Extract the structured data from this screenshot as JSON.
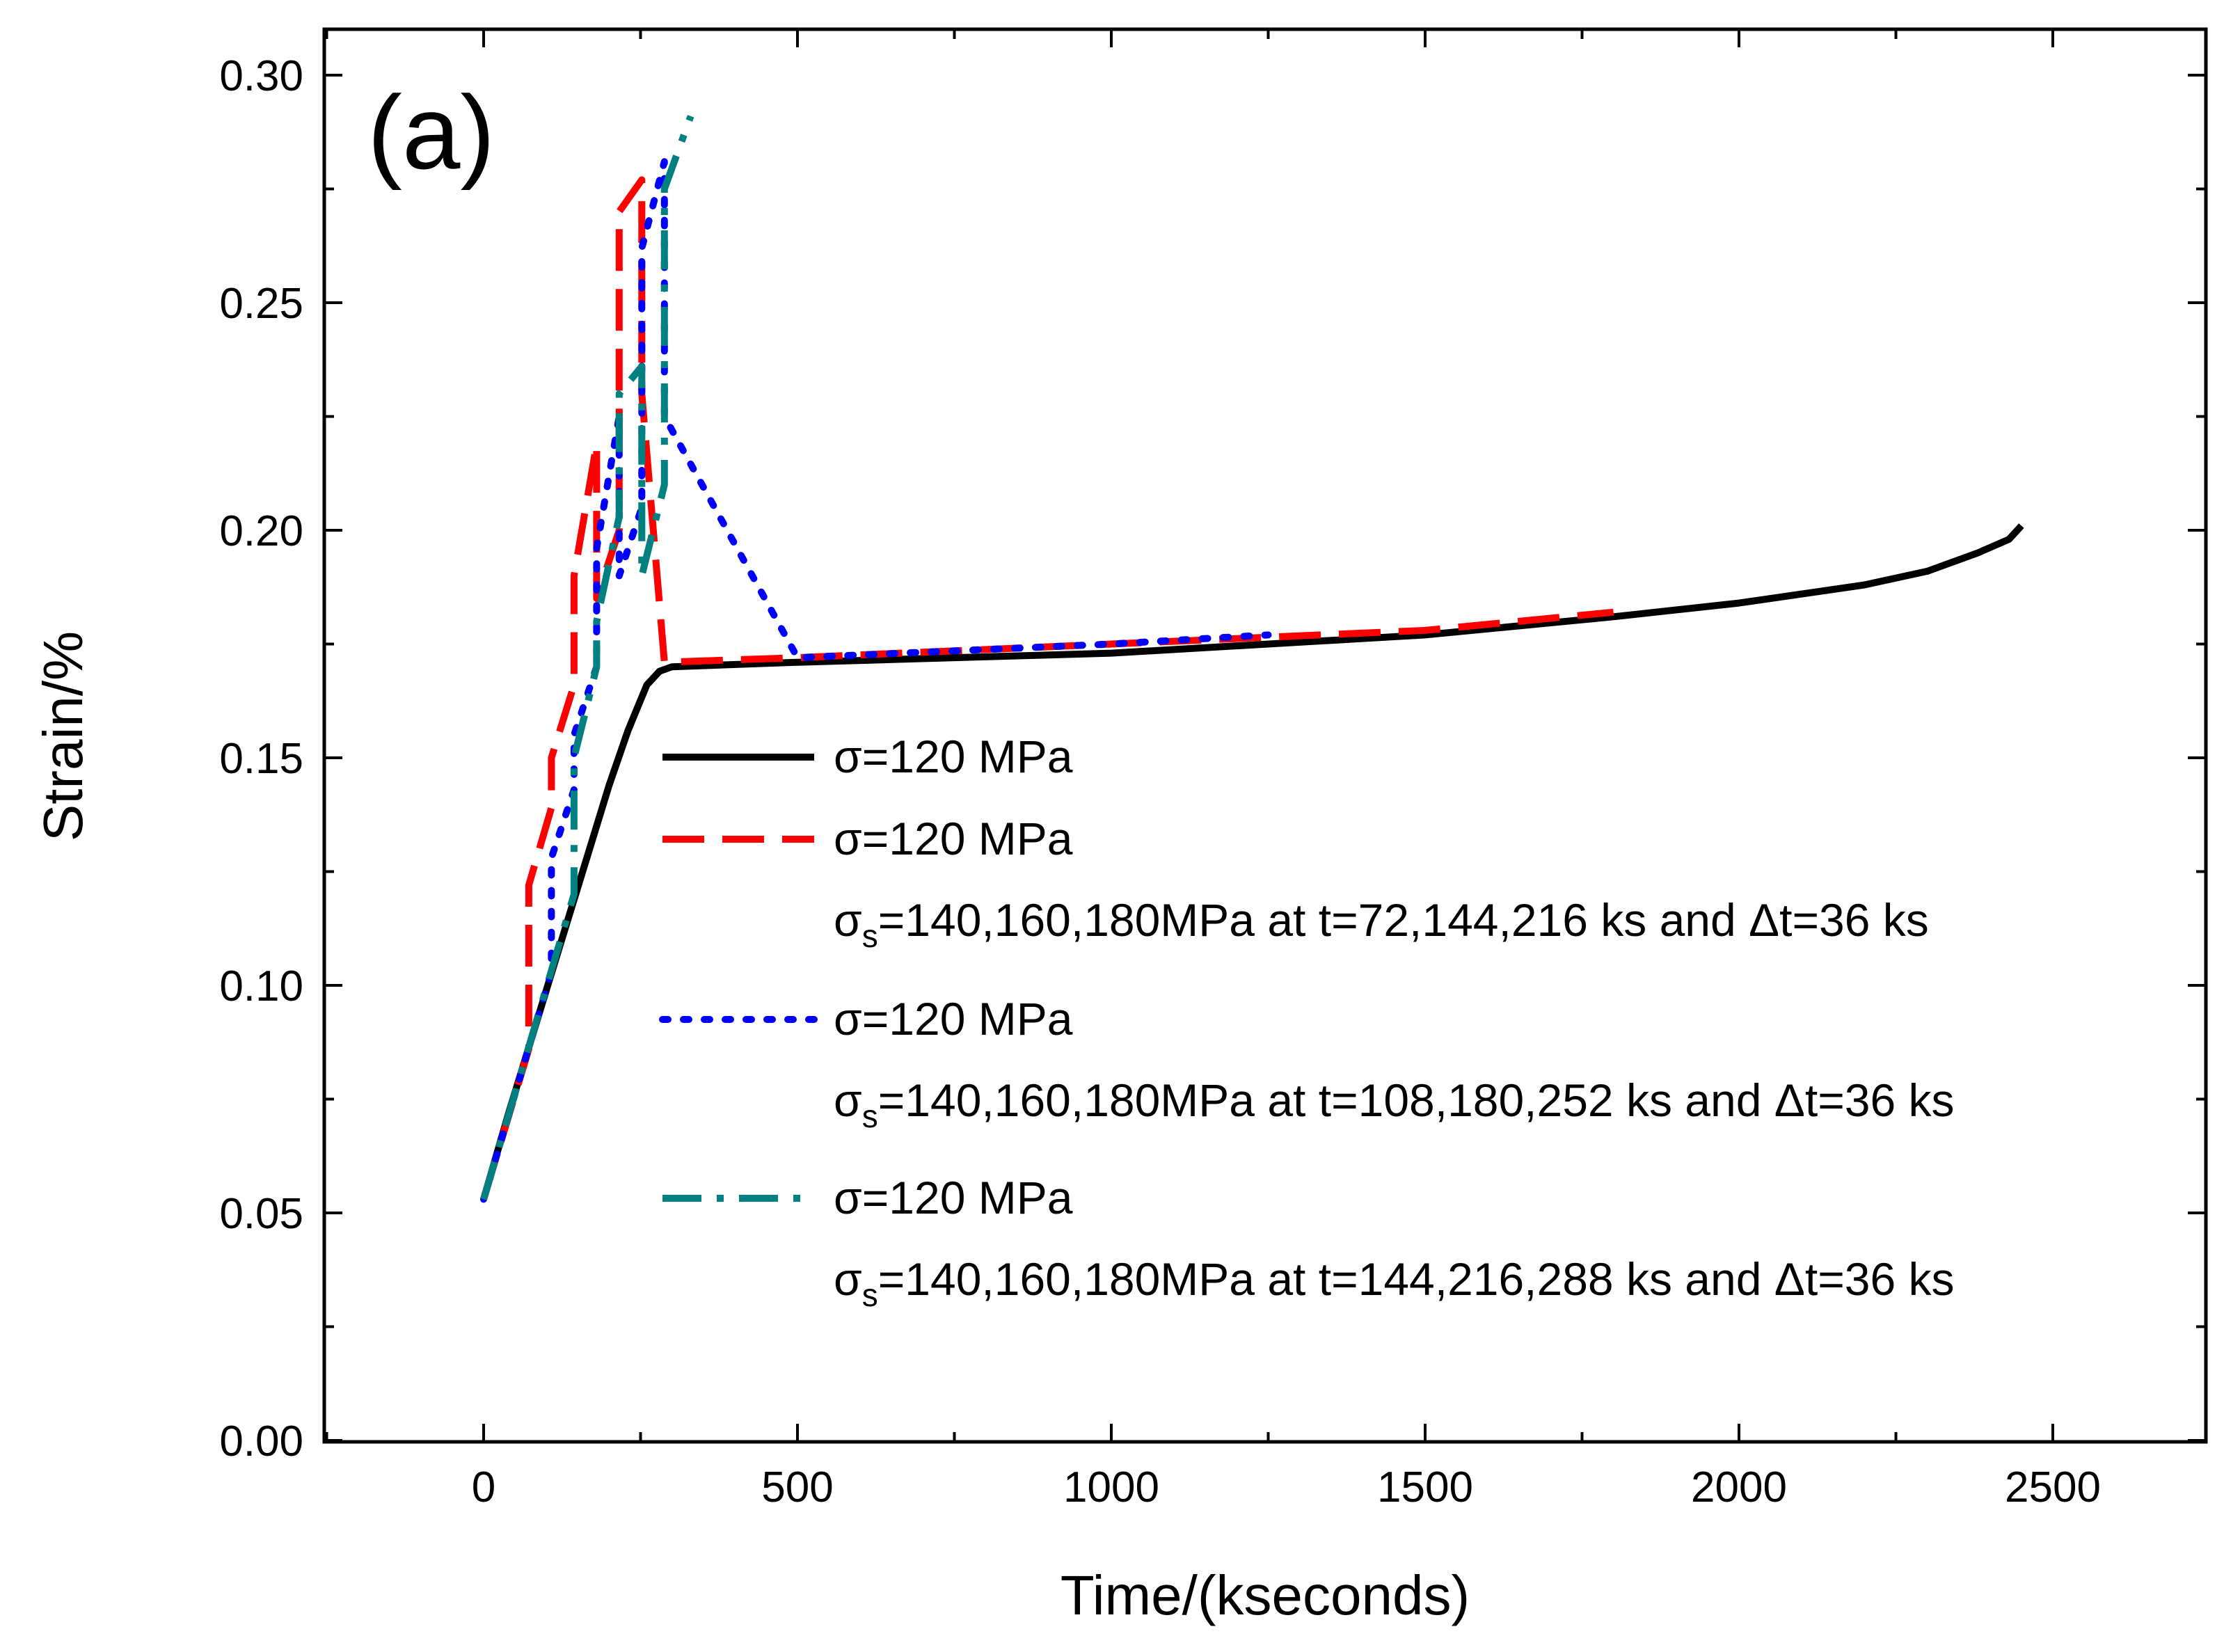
{
  "chart_data": {
    "type": "line",
    "panel_label": "(a)",
    "xlabel": "Time/(kseconds)",
    "ylabel": "Strain/%",
    "xlim": [
      -250,
      2750
    ],
    "ylim": [
      0.0,
      0.31
    ],
    "x_ticks": [
      0,
      500,
      1000,
      1500,
      2000,
      2500
    ],
    "x_tick_labels": [
      "0",
      "500",
      "1000",
      "1500",
      "2000",
      "2500"
    ],
    "y_ticks": [
      0.0,
      0.05,
      0.1,
      0.15,
      0.2,
      0.25,
      0.3
    ],
    "y_tick_labels": [
      "0.00",
      "0.05",
      "0.10",
      "0.15",
      "0.20",
      "0.25",
      "0.30"
    ],
    "legend_position": "center-right",
    "series": [
      {
        "name": "σ=120 MPa",
        "legend_lines": [
          "σ=120 MPa"
        ],
        "color": "#000000",
        "style": "solid",
        "x": [
          0,
          40,
          80,
          120,
          160,
          200,
          230,
          260,
          280,
          300,
          500,
          1000,
          1500,
          1800,
          2000,
          2200,
          2300,
          2380,
          2430,
          2450
        ],
        "y": [
          0.053,
          0.072,
          0.09,
          0.108,
          0.126,
          0.144,
          0.156,
          0.166,
          0.169,
          0.17,
          0.171,
          0.173,
          0.177,
          0.181,
          0.184,
          0.188,
          0.191,
          0.195,
          0.198,
          0.201
        ]
      },
      {
        "name": "σ=120 MPa, σs=140,160,180MPa at t=72,144,216 ks and Δt=36 ks",
        "legend_lines": [
          "σ=120 MPa",
          "σs=140,160,180MPa at t=72,144,216 ks and Δt=36 ks"
        ],
        "color": "#ff0000",
        "style": "dashed",
        "x": [
          0,
          72,
          72,
          108,
          108,
          144,
          144,
          180,
          180,
          216,
          216,
          252,
          252,
          288,
          500,
          1000,
          1500,
          1800
        ],
        "y": [
          0.053,
          0.086,
          0.122,
          0.139,
          0.15,
          0.166,
          0.19,
          0.219,
          0.185,
          0.2,
          0.27,
          0.277,
          0.23,
          0.171,
          0.172,
          0.175,
          0.178,
          0.182
        ]
      },
      {
        "name": "σ=120 MPa, σs=140,160,180MPa at t=108,180,252 ks and Δt=36 ks",
        "legend_lines": [
          "σ=120 MPa",
          "σs=140,160,180MPa at t=108,180,252 ks and Δt=36 ks"
        ],
        "color": "#0000ff",
        "style": "dotted",
        "x": [
          0,
          108,
          108,
          144,
          144,
          180,
          180,
          216,
          216,
          252,
          252,
          288,
          288,
          500,
          1000,
          1250
        ],
        "y": [
          0.053,
          0.103,
          0.128,
          0.143,
          0.155,
          0.17,
          0.196,
          0.225,
          0.19,
          0.205,
          0.262,
          0.281,
          0.225,
          0.172,
          0.175,
          0.177
        ]
      },
      {
        "name": "σ=120 MPa, σs=140,160,180MPa at t=144,216,288 ks and Δt=36 ks",
        "legend_lines": [
          "σ=120 MPa",
          "σs=140,160,180MPa at t=144,216,288 ks and Δt=36 ks"
        ],
        "color": "#008080",
        "style": "dash-dot",
        "x": [
          0,
          144,
          144,
          180,
          180,
          216,
          216,
          252,
          252,
          288,
          288,
          330
        ],
        "y": [
          0.053,
          0.12,
          0.15,
          0.17,
          0.18,
          0.203,
          0.23,
          0.236,
          0.19,
          0.21,
          0.275,
          0.291
        ]
      }
    ]
  }
}
